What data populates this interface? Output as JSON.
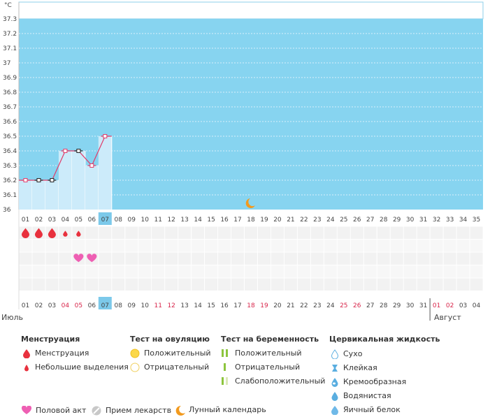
{
  "chart_data": {
    "type": "line",
    "unit": "°C",
    "y_ticks": [
      "37.3",
      "37.2",
      "37.1",
      "37",
      "36.9",
      "36.8",
      "36.7",
      "36.6",
      "36.5",
      "36.4",
      "36.3",
      "36.2",
      "36.1",
      "36"
    ],
    "ylim": [
      36.0,
      37.3
    ],
    "x_top": [
      "01",
      "02",
      "03",
      "04",
      "05",
      "06",
      "07",
      "08",
      "09",
      "10",
      "11",
      "12",
      "13",
      "14",
      "15",
      "16",
      "17",
      "18",
      "19",
      "20",
      "21",
      "22",
      "23",
      "24",
      "25",
      "26",
      "27",
      "28",
      "29",
      "30",
      "31",
      "32",
      "33",
      "34",
      "35"
    ],
    "x_bottom": [
      "01",
      "02",
      "03",
      "04",
      "05",
      "06",
      "07",
      "08",
      "09",
      "10",
      "11",
      "12",
      "13",
      "14",
      "15",
      "16",
      "17",
      "18",
      "19",
      "20",
      "21",
      "22",
      "23",
      "24",
      "25",
      "26",
      "27",
      "28",
      "29",
      "30",
      "31",
      "01",
      "02",
      "03",
      "04"
    ],
    "x_bottom_red": [
      3,
      4,
      10,
      11,
      17,
      18,
      24,
      25,
      31,
      32
    ],
    "current_day_index": 6,
    "temperature": {
      "days": [
        1,
        2,
        3,
        4,
        5,
        6,
        7
      ],
      "values": [
        36.2,
        36.2,
        36.2,
        36.4,
        36.4,
        36.3,
        36.5
      ],
      "marker_types": [
        "red",
        "black",
        "black",
        "red",
        "black",
        "red",
        "red"
      ]
    },
    "menstruation_days": [
      1,
      2,
      3
    ],
    "light_bleeding_days": [
      4,
      5
    ],
    "intercourse_days": [
      5,
      6
    ],
    "moon_day": 18,
    "grid": true,
    "colors": {
      "fill": "#87d4f0",
      "area": "#ccebfa",
      "line": "#e03c6a",
      "current_day": "#7cc9ea",
      "drop": "#e8313e",
      "heart": "#ee5fb3",
      "moon": "#f29a1e"
    }
  },
  "months": {
    "july": "Июль",
    "august": "Август"
  },
  "legend": {
    "menstruation": {
      "title": "Менструация",
      "items": [
        "Менструация",
        "Небольшие выделения"
      ]
    },
    "ovulation": {
      "title": "Тест на овуляцию",
      "items": [
        "Положительный",
        "Отрицательный"
      ]
    },
    "pregnancy": {
      "title": "Тест на беременность",
      "items": [
        "Положительный",
        "Отрицательный",
        "Слабоположительный"
      ]
    },
    "cervical": {
      "title": "Цервикальная жидкость",
      "items": [
        "Сухо",
        "Клейкая",
        "Кремообразная",
        "Водянистая",
        "Яичный белок"
      ]
    },
    "bottom": {
      "intercourse": "Половой акт",
      "medication": "Прием лекарств",
      "lunar": "Лунный календарь"
    }
  }
}
